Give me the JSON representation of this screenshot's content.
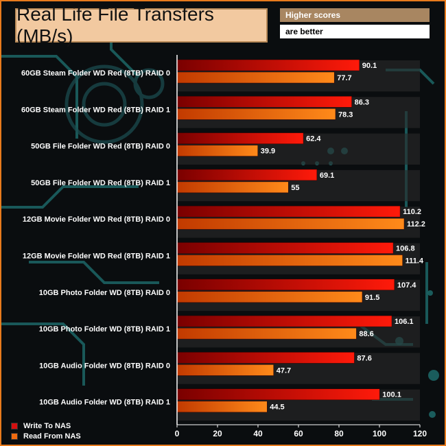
{
  "header": {
    "title": "Real Life File Transfers (MB/s)",
    "badge_top": "Higher scores",
    "badge_bottom": "are better"
  },
  "colors": {
    "write": "#d41010",
    "read": "#f06a10",
    "frame": "#e87a1c"
  },
  "chart_data": {
    "type": "bar",
    "orientation": "horizontal",
    "title": "Real Life File Transfers (MB/s)",
    "categories": [
      "60GB Steam Folder WD Red (8TB) RAID 0",
      "60GB Steam Folder WD Red (8TB) RAID 1",
      "50GB File Folder WD Red (8TB) RAID 0",
      "50GB File Folder WD Red (8TB) RAID 1",
      "12GB Movie Folder WD Red (8TB) RAID 0",
      "12GB Movie Folder WD Red (8TB) RAID 1",
      "10GB Photo Folder WD (8TB) RAID 0",
      "10GB Photo Folder WD (8TB) RAID 1",
      "10GB Audio Folder WD (8TB)  RAID 0",
      "10GB Audio Folder WD (8TB)  RAID 1"
    ],
    "series": [
      {
        "name": "Write To NAS",
        "values": [
          90.1,
          86.3,
          62.4,
          69.1,
          110.2,
          106.8,
          107.4,
          106.1,
          87.6,
          100.1
        ]
      },
      {
        "name": "Read From NAS",
        "values": [
          77.7,
          78.3,
          39.9,
          55,
          112.2,
          111.4,
          91.5,
          88.6,
          47.7,
          44.5
        ]
      }
    ],
    "xlim": [
      0,
      120
    ],
    "xticks": [
      0,
      20,
      40,
      60,
      80,
      100,
      120
    ],
    "legend_position": "bottom-left",
    "grid": false
  }
}
